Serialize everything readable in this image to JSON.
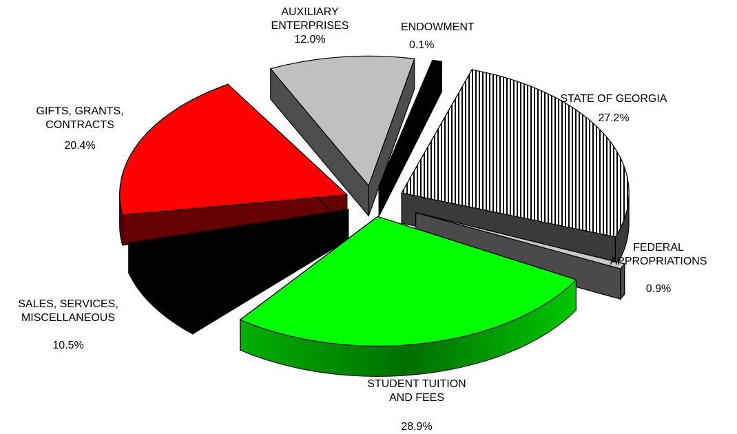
{
  "chart_data": {
    "type": "pie",
    "title": "",
    "slices": [
      {
        "label_lines": [
          "STATE OF GEORGIA"
        ],
        "value": 27.2,
        "value_label": "27.2%",
        "color": "#ffffff",
        "pattern": "vertical-stripes",
        "side_color": "#3a3a3a"
      },
      {
        "label_lines": [
          "FEDERAL",
          "APPROPRIATIONS"
        ],
        "value": 0.9,
        "value_label": "0.9%",
        "color": "#c8c8c8",
        "side_color": "#4a4a4a"
      },
      {
        "label_lines": [
          "STUDENT TUITION",
          "AND FEES"
        ],
        "value": 28.9,
        "value_label": "28.9%",
        "color": "#00ff00",
        "side_color": "#008a00"
      },
      {
        "label_lines": [
          "SALES, SERVICES,",
          "MISCELLANEOUS"
        ],
        "value": 10.5,
        "value_label": "10.5%",
        "color": "#000000",
        "side_color": "#000000"
      },
      {
        "label_lines": [
          "GIFTS, GRANTS,",
          "CONTRACTS"
        ],
        "value": 20.4,
        "value_label": "20.4%",
        "color": "#ff0000",
        "side_color": "#660000"
      },
      {
        "label_lines": [
          "AUXILIARY",
          "ENTERPRISES"
        ],
        "value": 12.0,
        "value_label": "12.0%",
        "color": "#c0c0c0",
        "side_color": "#4d4d4d"
      },
      {
        "label_lines": [
          "ENDOWMENT"
        ],
        "value": 0.1,
        "value_label": "0.1%",
        "color": "#000000",
        "side_color": "#000000"
      }
    ]
  }
}
